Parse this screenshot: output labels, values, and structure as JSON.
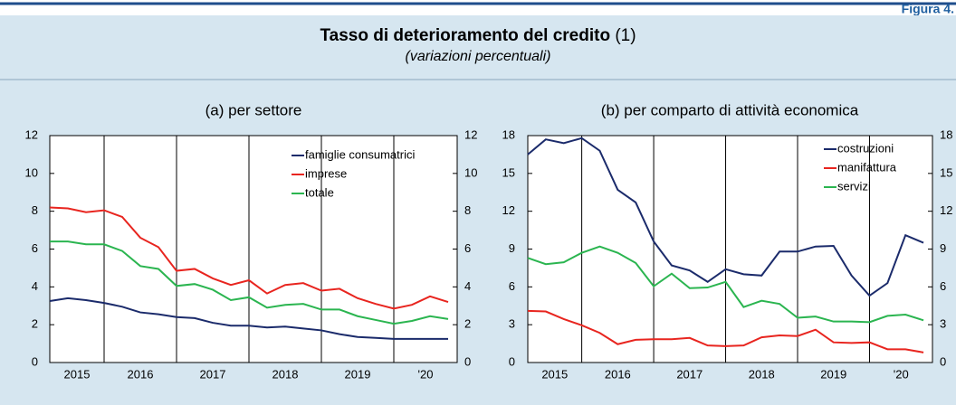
{
  "figure_label": "Figura 4.",
  "header": {
    "title": "Tasso di deterioramento del credito",
    "title_note": "(1)",
    "subtitle": "(variazioni percentuali)"
  },
  "chart_data": [
    {
      "type": "line",
      "title": "(a) per settore",
      "categories": [
        null,
        null,
        null,
        "2015",
        null,
        null,
        null,
        "2016",
        null,
        null,
        null,
        "2017",
        null,
        null,
        null,
        "2018",
        null,
        null,
        null,
        "2019",
        null,
        null,
        "'20"
      ],
      "series": [
        {
          "name": "famiglie consumatrici",
          "color": "#1b2b6b",
          "values": [
            3.25,
            3.4,
            3.3,
            3.15,
            2.95,
            2.65,
            2.55,
            2.4,
            2.35,
            2.1,
            1.95,
            1.95,
            1.85,
            1.9,
            1.8,
            1.7,
            1.5,
            1.35,
            1.3,
            1.25,
            1.25,
            1.25,
            1.25
          ]
        },
        {
          "name": "imprese",
          "color": "#e8251f",
          "values": [
            8.2,
            8.15,
            7.95,
            8.05,
            7.7,
            6.6,
            6.1,
            4.85,
            4.95,
            4.45,
            4.1,
            4.35,
            3.65,
            4.1,
            4.2,
            3.8,
            3.9,
            3.4,
            3.1,
            2.85,
            3.05,
            3.5,
            3.2
          ]
        },
        {
          "name": "totale",
          "color": "#2bb550",
          "values": [
            6.4,
            6.4,
            6.25,
            6.25,
            5.9,
            5.1,
            4.95,
            4.05,
            4.15,
            3.85,
            3.3,
            3.45,
            2.9,
            3.05,
            3.1,
            2.8,
            2.8,
            2.45,
            2.25,
            2.05,
            2.2,
            2.45,
            2.3
          ]
        }
      ],
      "ylim": [
        0,
        12
      ],
      "yticks": [
        0,
        2,
        4,
        6,
        8,
        10,
        12
      ],
      "y2lim": [
        0,
        12
      ],
      "y2ticks": [
        0,
        2,
        4,
        6,
        8,
        10,
        12
      ],
      "legend": "upper right"
    },
    {
      "type": "line",
      "title": "(b) per comparto di attività economica",
      "categories": [
        null,
        null,
        null,
        "2015",
        null,
        null,
        null,
        "2016",
        null,
        null,
        null,
        "2017",
        null,
        null,
        null,
        "2018",
        null,
        null,
        null,
        "2019",
        null,
        null,
        "'20"
      ],
      "series": [
        {
          "name": "costruzioni",
          "color": "#1b2b6b",
          "values": [
            16.5,
            17.7,
            17.4,
            17.8,
            16.8,
            13.7,
            12.7,
            9.6,
            7.7,
            7.3,
            6.4,
            7.4,
            7.0,
            6.9,
            8.8,
            8.8,
            9.2,
            9.25,
            6.9,
            5.3,
            6.3,
            10.1,
            9.5
          ]
        },
        {
          "name": "manifattura",
          "color": "#e8251f",
          "values": [
            4.1,
            4.05,
            3.45,
            2.95,
            2.35,
            1.45,
            1.8,
            1.85,
            1.85,
            1.95,
            1.35,
            1.3,
            1.35,
            2.0,
            2.15,
            2.1,
            2.6,
            1.6,
            1.55,
            1.6,
            1.05,
            1.05,
            0.8
          ]
        },
        {
          "name": "servizi",
          "color": "#2bb550",
          "values": [
            8.3,
            7.8,
            7.95,
            8.7,
            9.2,
            8.7,
            7.9,
            6.05,
            7.05,
            5.9,
            5.95,
            6.4,
            4.4,
            4.9,
            4.65,
            3.55,
            3.65,
            3.25,
            3.25,
            3.2,
            3.7,
            3.8,
            3.35
          ]
        }
      ],
      "ylim": [
        0,
        18
      ],
      "yticks": [
        0,
        3,
        6,
        9,
        12,
        15,
        18
      ],
      "y2lim": [
        0,
        18
      ],
      "y2ticks": [
        0,
        3,
        6,
        9,
        12,
        15,
        18
      ],
      "legend": "upper right"
    }
  ]
}
